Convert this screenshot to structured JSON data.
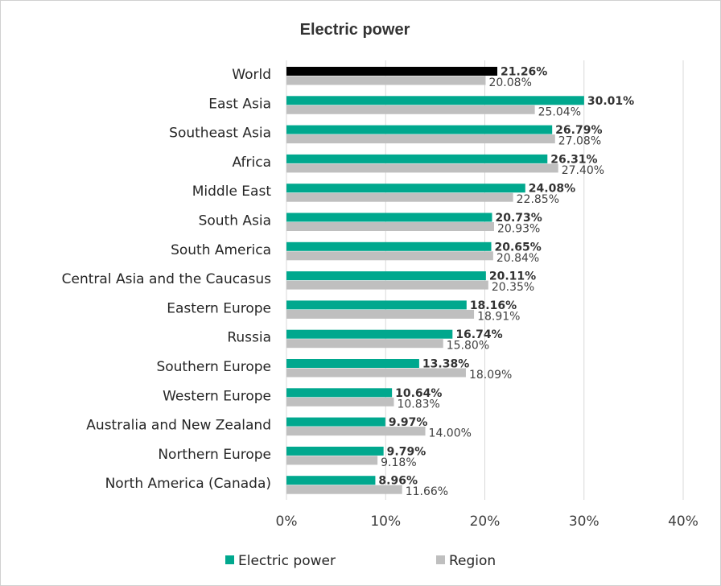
{
  "chart_data": {
    "type": "bar",
    "orientation": "horizontal",
    "title": "Electric power",
    "categories": [
      "World",
      "East Asia",
      "Southeast Asia",
      "Africa",
      "Middle East",
      "South Asia",
      "South America",
      "Central Asia and the Caucasus",
      "Eastern Europe",
      "Russia",
      "Southern Europe",
      "Western Europe",
      "Australia and New Zealand",
      "Northern Europe",
      "North America (Canada)"
    ],
    "series": [
      {
        "name": "Electric power",
        "color": "#00a88e",
        "values": [
          21.26,
          30.01,
          26.79,
          26.31,
          24.08,
          20.73,
          20.65,
          20.11,
          18.16,
          16.74,
          13.38,
          10.64,
          9.97,
          9.79,
          8.96
        ],
        "labels": [
          "21.26%",
          "30.01%",
          "26.79%",
          "26.31%",
          "24.08%",
          "20.73%",
          "20.65%",
          "20.11%",
          "18.16%",
          "16.74%",
          "13.38%",
          "10.64%",
          "9.97%",
          "9.79%",
          "8.96%"
        ]
      },
      {
        "name": "Region",
        "color": "#bfbfbf",
        "values": [
          20.08,
          25.04,
          27.08,
          27.4,
          22.85,
          20.93,
          20.84,
          20.35,
          18.91,
          15.8,
          18.09,
          10.83,
          14.0,
          9.18,
          11.66
        ],
        "labels": [
          "20.08%",
          "25.04%",
          "27.08%",
          "27.40%",
          "22.85%",
          "20.93%",
          "20.84%",
          "20.35%",
          "18.91%",
          "15.80%",
          "18.09%",
          "10.83%",
          "14.00%",
          "9.18%",
          "11.66%"
        ]
      }
    ],
    "highlight_color": "#000000",
    "xlim": [
      0,
      40
    ],
    "xticks": [
      0,
      10,
      20,
      30,
      40
    ],
    "xtick_labels": [
      "0%",
      "10%",
      "20%",
      "30%",
      "40%"
    ],
    "grid": true,
    "legend_position": "bottom"
  }
}
